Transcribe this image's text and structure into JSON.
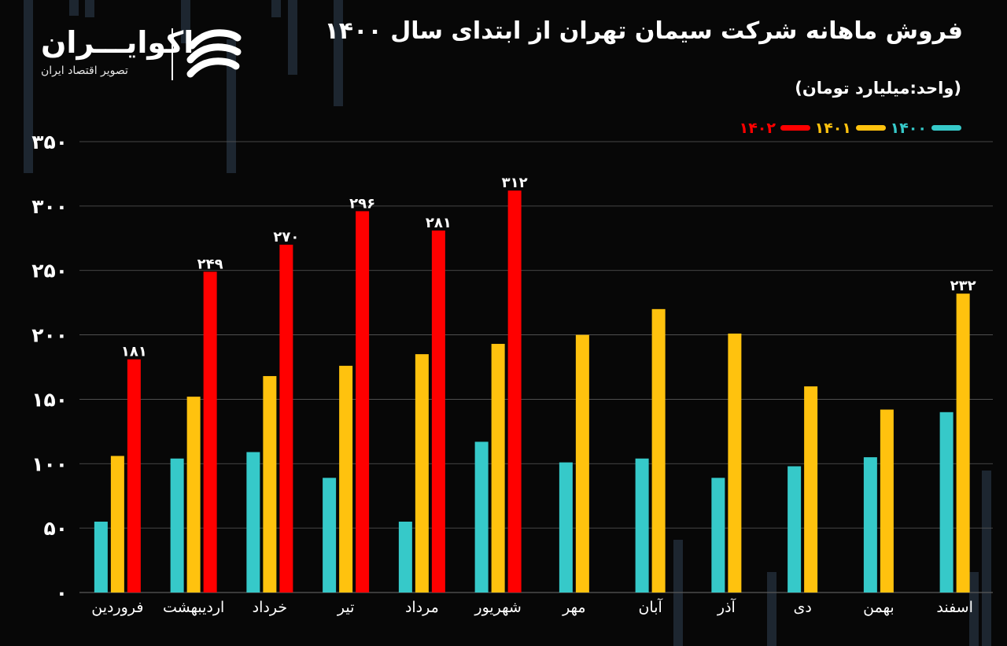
{
  "title": "فروش ماهانه شرکت سیمان تهران از ابتدای سال ۱۴۰۰",
  "subtitle": "(واحد:میلیارد تومان)",
  "logo": {
    "name": "اکوایـــران",
    "tagline": "تصویر اقتصاد ایران"
  },
  "chart_data": {
    "type": "bar",
    "categories": [
      "فروردین",
      "اردیبهشت",
      "خرداد",
      "تیر",
      "مرداد",
      "شهریور",
      "مهر",
      "آبان",
      "آذر",
      "دی",
      "بهمن",
      "اسفند"
    ],
    "series": [
      {
        "name": "۱۴۰۰",
        "color": "#36c9c9",
        "values": [
          55,
          104,
          109,
          89,
          55,
          117,
          101,
          104,
          89,
          98,
          105,
          140
        ]
      },
      {
        "name": "۱۴۰۱",
        "color": "#ffc20e",
        "values": [
          106,
          152,
          168,
          176,
          185,
          193,
          200,
          220,
          201,
          160,
          142,
          232
        ]
      },
      {
        "name": "۱۴۰۲",
        "color": "#ff0000",
        "values": [
          181,
          249,
          270,
          296,
          281,
          312,
          null,
          null,
          null,
          null,
          null,
          null
        ]
      }
    ],
    "data_labels": [
      {
        "series": 2,
        "index": 0,
        "text": "۱۸۱"
      },
      {
        "series": 2,
        "index": 1,
        "text": "۲۴۹"
      },
      {
        "series": 2,
        "index": 2,
        "text": "۲۷۰"
      },
      {
        "series": 2,
        "index": 3,
        "text": "۲۹۶"
      },
      {
        "series": 2,
        "index": 4,
        "text": "۲۸۱"
      },
      {
        "series": 2,
        "index": 5,
        "text": "۳۱۲"
      },
      {
        "series": 1,
        "index": 11,
        "text": "۲۳۲"
      }
    ],
    "yticks": [
      {
        "value": 0,
        "label": "۰"
      },
      {
        "value": 50,
        "label": "۵۰"
      },
      {
        "value": 100,
        "label": "۱۰۰"
      },
      {
        "value": 150,
        "label": "۱۵۰"
      },
      {
        "value": 200,
        "label": "۲۰۰"
      },
      {
        "value": 250,
        "label": "۲۵۰"
      },
      {
        "value": 300,
        "label": "۳۰۰"
      },
      {
        "value": 350,
        "label": "۳۵۰"
      }
    ],
    "ylim": [
      0,
      350
    ],
    "grid": true,
    "legend_position": "top-right",
    "xlabel": "",
    "ylabel": ""
  }
}
